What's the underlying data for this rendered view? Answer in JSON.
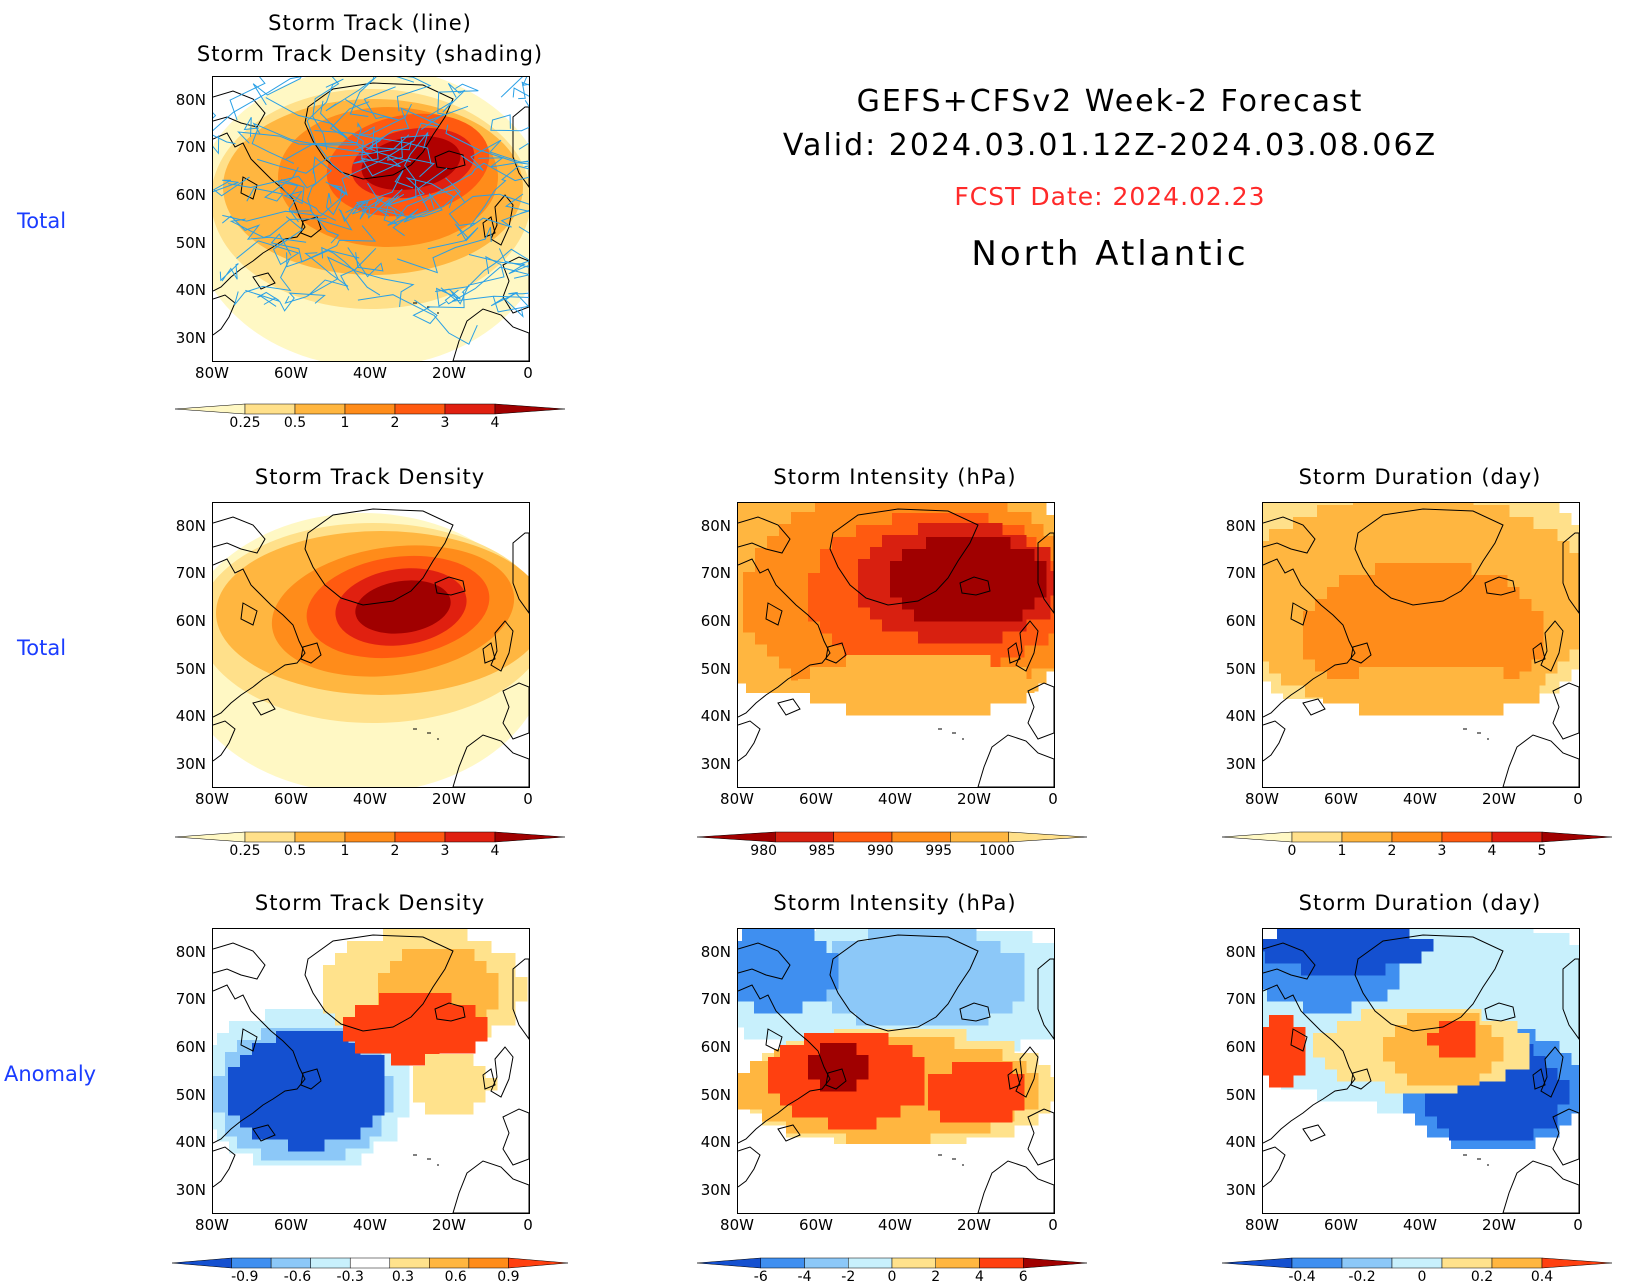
{
  "header": {
    "title_line1": "GEFS+CFSv2 Week-2 Forecast",
    "title_line2": "Valid: 2024.03.01.12Z-2024.03.08.06Z",
    "fcst_date": "FCST Date: 2024.02.23",
    "region": "North Atlantic",
    "fcst_color": "#ff2a2a"
  },
  "row_labels": [
    "Total",
    "Total",
    "Anomaly"
  ],
  "axes": {
    "lat_ticks": [
      "80N",
      "70N",
      "60N",
      "50N",
      "40N",
      "30N"
    ],
    "lon_ticks": [
      "80W",
      "60W",
      "40W",
      "20W",
      "0"
    ]
  },
  "panels": {
    "track": {
      "title_line1": "Storm Track (line)",
      "title_line2": "Storm Track Density (shading)"
    },
    "density_total": {
      "title": "Storm Track Density"
    },
    "intensity_total": {
      "title": "Storm Intensity (hPa)"
    },
    "duration_total": {
      "title": "Storm Duration (day)"
    },
    "density_anom": {
      "title": "Storm Track Density"
    },
    "intensity_anom": {
      "title": "Storm Intensity (hPa)"
    },
    "duration_anom": {
      "title": "Storm Duration (day)"
    }
  },
  "colorbars": {
    "density": {
      "ticks": [
        "0.25",
        "0.5",
        "1",
        "2",
        "3",
        "4"
      ],
      "colors": [
        "#fff8c4",
        "#ffe08a",
        "#ffb640",
        "#ff8c1a",
        "#ff5a10",
        "#e02010",
        "#a00000"
      ]
    },
    "intensity": {
      "ticks": [
        "980",
        "985",
        "990",
        "995",
        "1000"
      ],
      "colors": [
        "#a00000",
        "#d82010",
        "#ff5a10",
        "#ff8c1a",
        "#ffb640",
        "#ffe08a"
      ]
    },
    "duration": {
      "ticks": [
        "0",
        "1",
        "2",
        "3",
        "4",
        "5"
      ],
      "colors": [
        "#fff8c4",
        "#ffe08a",
        "#ffb640",
        "#ff8c1a",
        "#ff5a10",
        "#e02010",
        "#a00000"
      ]
    },
    "density_anom": {
      "ticks": [
        "-0.9",
        "-0.6",
        "-0.3",
        "0.3",
        "0.6",
        "0.9"
      ],
      "colors": [
        "#1450d0",
        "#3f8ff0",
        "#8cc8f8",
        "#c8f0fc",
        "#ffffff",
        "#ffe28c",
        "#ffb640",
        "#ff8c1a",
        "#ff4010"
      ]
    },
    "intensity_anom": {
      "ticks": [
        "-6",
        "-4",
        "-2",
        "0",
        "2",
        "4",
        "6"
      ],
      "colors": [
        "#1450d0",
        "#3f8ff0",
        "#8cc8f8",
        "#c8f0fc",
        "#ffe28c",
        "#ffb640",
        "#ff4010",
        "#a00000"
      ]
    },
    "duration_anom": {
      "ticks": [
        "-0.4",
        "-0.2",
        "0",
        "0.2",
        "0.4"
      ],
      "colors": [
        "#1450d0",
        "#3f8ff0",
        "#8cc8f8",
        "#c8f0fc",
        "#ffe28c",
        "#ffb640",
        "#ff4010"
      ]
    }
  }
}
